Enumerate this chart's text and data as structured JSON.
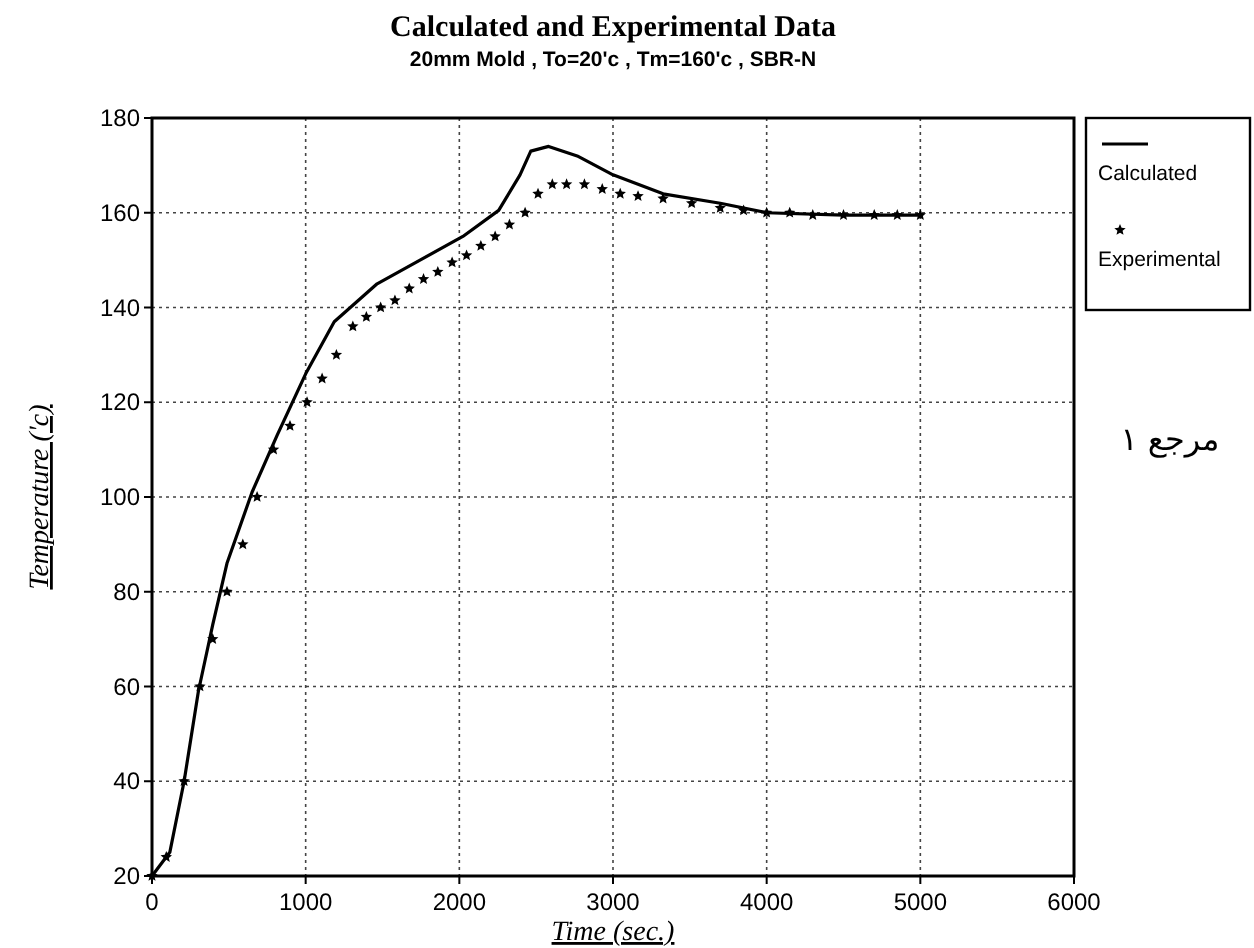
{
  "chart_data": {
    "type": "line",
    "title": "Calculated and Experimental Data",
    "subtitle": "20mm Mold , To=20'c , Tm=160'c , SBR-N",
    "xlabel": "Time (sec.)",
    "ylabel": "Temperature ('c)",
    "annotations": [
      "مرجع ١"
    ],
    "xlim": [
      0,
      6000
    ],
    "ylim": [
      20,
      180
    ],
    "xticks": [
      0,
      1000,
      2000,
      3000,
      4000,
      5000,
      6000
    ],
    "yticks": [
      20,
      40,
      60,
      80,
      100,
      120,
      140,
      160,
      180
    ],
    "grid": true,
    "legend": "top right",
    "series": [
      {
        "name": "Calculated",
        "color": "#000000",
        "line_style": "solid",
        "x": [
          0,
          116,
          209,
          302,
          395,
          488,
          651,
          814,
          1000,
          1186,
          1465,
          1744,
          2023,
          2256,
          2395,
          2465,
          2581,
          2767,
          3000,
          3326,
          3698,
          4000,
          4500,
          5000
        ],
        "values": [
          20,
          25,
          40,
          59,
          73,
          86,
          101,
          113,
          126,
          137,
          145,
          150,
          155,
          160.5,
          168,
          173,
          174,
          172,
          168,
          164,
          162,
          160,
          159.5,
          159.5
        ]
      },
      {
        "name": "Experimental",
        "type": "scatter",
        "color": "#000000",
        "marker": "star",
        "x": [
          0,
          93,
          209,
          312,
          395,
          488,
          591,
          684,
          791,
          898,
          1009,
          1107,
          1200,
          1307,
          1395,
          1488,
          1581,
          1674,
          1767,
          1860,
          1953,
          2047,
          2140,
          2233,
          2326,
          2428,
          2512,
          2605,
          2698,
          2814,
          2930,
          3047,
          3163,
          3326,
          3512,
          3698,
          3850,
          4000,
          4150,
          4300,
          4500,
          4700,
          4850,
          5000
        ],
        "values": [
          20,
          24,
          40,
          60,
          70,
          80,
          90,
          100,
          110,
          115,
          120,
          125,
          130,
          136,
          138,
          140,
          141.5,
          144,
          146,
          147.5,
          149.5,
          151,
          153,
          155,
          157.5,
          160,
          164,
          166,
          166,
          166,
          165,
          164,
          163.5,
          163,
          162,
          161,
          160.5,
          160,
          160,
          159.5,
          159.5,
          159.5,
          159.5,
          159.5
        ]
      }
    ]
  }
}
